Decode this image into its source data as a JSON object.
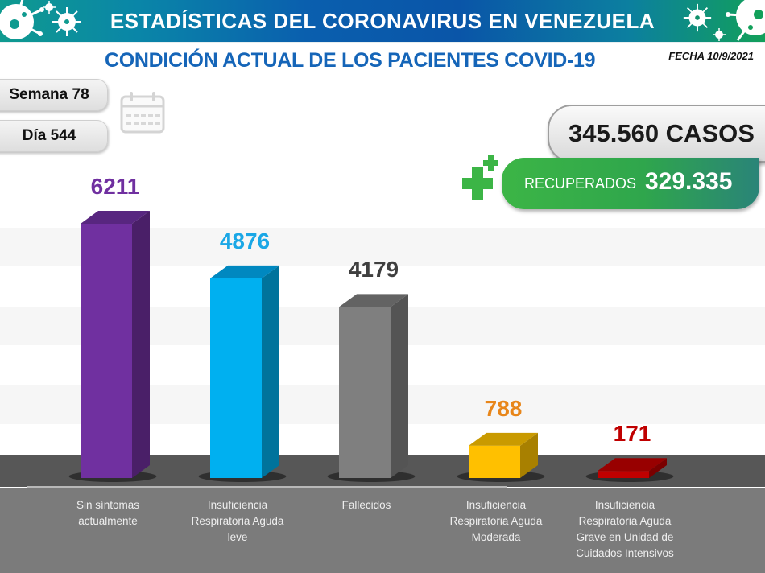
{
  "header": {
    "banner_title": "ESTADÍSTICAS DEL CORONAVIRUS EN VENEZUELA",
    "subtitle": "CONDICIÓN ACTUAL DE LOS PACIENTES COVID-19",
    "fecha": "FECHA 10/9/2021",
    "banner_colors": {
      "left": "#0f9a8f",
      "center": "#0a55a8",
      "right": "#12a05a"
    }
  },
  "info": {
    "semana": "Semana 78",
    "dia": "Día 544",
    "casos": "345.560 CASOS",
    "recuperados_label": "RECUPERADOS",
    "recuperados_value": "329.335"
  },
  "icons": [
    "virus-icon",
    "calendar-icon",
    "plus-icon"
  ],
  "chart_data": {
    "type": "bar",
    "title": "CONDICIÓN ACTUAL DE LOS PACIENTES COVID-19",
    "xlabel": "",
    "ylabel": "",
    "ylim": [
      0,
      6211
    ],
    "grid": false,
    "legend": "none",
    "categories": [
      "Sin síntomas actualmente",
      "Insuficiencia Respiratoria Aguda leve",
      "Fallecidos",
      "Insuficiencia Respiratoria Aguda Moderada",
      "Insuficiencia Respiratoria Aguda Grave en Unidad de Cuidados Intensivos"
    ],
    "category_lines": [
      [
        "Sin síntomas",
        "actualmente"
      ],
      [
        "Insuficiencia",
        "Respiratoria Aguda",
        "leve"
      ],
      [
        "Fallecidos"
      ],
      [
        "Insuficiencia",
        "Respiratoria Aguda",
        "Moderada"
      ],
      [
        "Insuficiencia",
        "Respiratoria Aguda",
        "Grave en Unidad de",
        "Cuidados Intensivos"
      ]
    ],
    "values": [
      6211,
      4876,
      4179,
      788,
      171
    ],
    "value_labels": [
      "6211",
      "4876",
      "4179",
      "788",
      "171"
    ],
    "colors": [
      {
        "front": "#7030a0",
        "side": "#4a1f68",
        "top": "#582680",
        "label": "#7030a0"
      },
      {
        "front": "#00b0f0",
        "side": "#00739c",
        "top": "#0088c0",
        "label": "#1aa7e6"
      },
      {
        "front": "#7f7f7f",
        "side": "#545454",
        "top": "#636363",
        "label": "#3f3f3f"
      },
      {
        "front": "#ffc000",
        "side": "#a88000",
        "top": "#c99a00",
        "label": "#e8861a"
      },
      {
        "front": "#c00000",
        "side": "#7a0000",
        "top": "#980000",
        "label": "#c00000"
      }
    ]
  }
}
